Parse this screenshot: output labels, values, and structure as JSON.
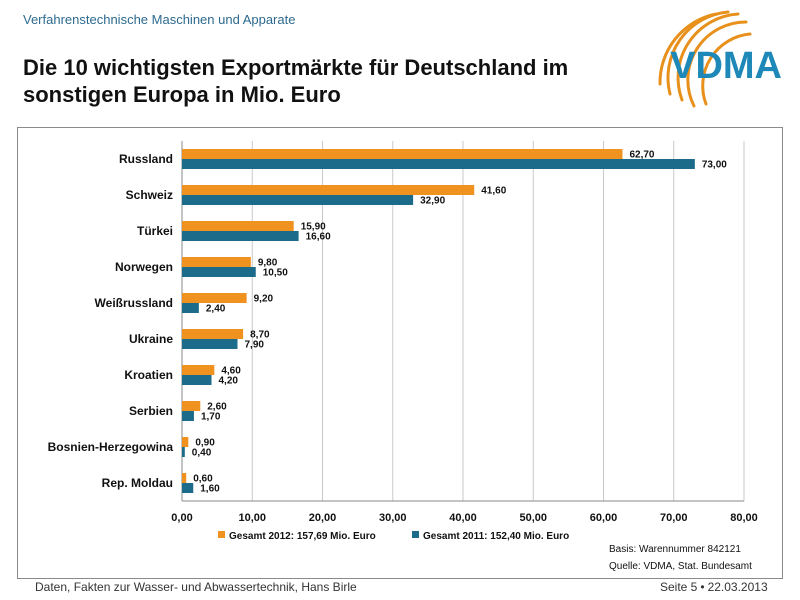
{
  "header": {
    "top_label": "Verfahrenstechnische Maschinen und Apparate",
    "title": "Die 10 wichtigsten Exportmärkte für Deutschland im sonstigen Europa in Mio. Euro"
  },
  "logo": {
    "text": "VDMA"
  },
  "colors": {
    "series2012": "#f0921f",
    "series2011": "#1d6b8a",
    "logo_blue": "#1e88b8",
    "logo_orange": "#e8901c"
  },
  "chart_data": {
    "type": "bar",
    "orientation": "horizontal",
    "title": "Die 10 wichtigsten Exportmärkte für Deutschland im sonstigen Europa in Mio. Euro",
    "categories": [
      "Russland",
      "Schweiz",
      "Türkei",
      "Norwegen",
      "Weißrussland",
      "Ukraine",
      "Kroatien",
      "Serbien",
      "Bosnien-Herzegowina",
      "Rep. Moldau"
    ],
    "series": [
      {
        "name": "Gesamt 2012: 157,69 Mio. Euro",
        "values": [
          62.7,
          41.6,
          15.9,
          9.8,
          9.2,
          8.7,
          4.6,
          2.6,
          0.9,
          0.6
        ],
        "labels": [
          "62,70",
          "41,60",
          "15,90",
          "9,80",
          "9,20",
          "8,70",
          "4,60",
          "2,60",
          "0,90",
          "0,60"
        ]
      },
      {
        "name": "Gesamt 2011: 152,40 Mio. Euro",
        "values": [
          73.0,
          32.9,
          16.6,
          10.5,
          2.4,
          7.9,
          4.2,
          1.7,
          0.4,
          1.6
        ],
        "labels": [
          "73,00",
          "32,90",
          "16,60",
          "10,50",
          "2,40",
          "7,90",
          "4,20",
          "1,70",
          "0,40",
          "1,60"
        ]
      }
    ],
    "xlim": [
      0,
      80
    ],
    "xticks": [
      "0,00",
      "10,00",
      "20,00",
      "30,00",
      "40,00",
      "50,00",
      "60,00",
      "70,00",
      "80,00"
    ],
    "grid": true,
    "legend": "bottom"
  },
  "notes": {
    "basis": "Basis: Warennummer 842121",
    "source": "Quelle: VDMA, Stat. Bundesamt"
  },
  "footer": {
    "left": "Daten, Fakten zur Wasser- und Abwassertechnik, Hans Birle",
    "page": "Seite 5",
    "separator": "•",
    "date": "22.03.2013"
  }
}
